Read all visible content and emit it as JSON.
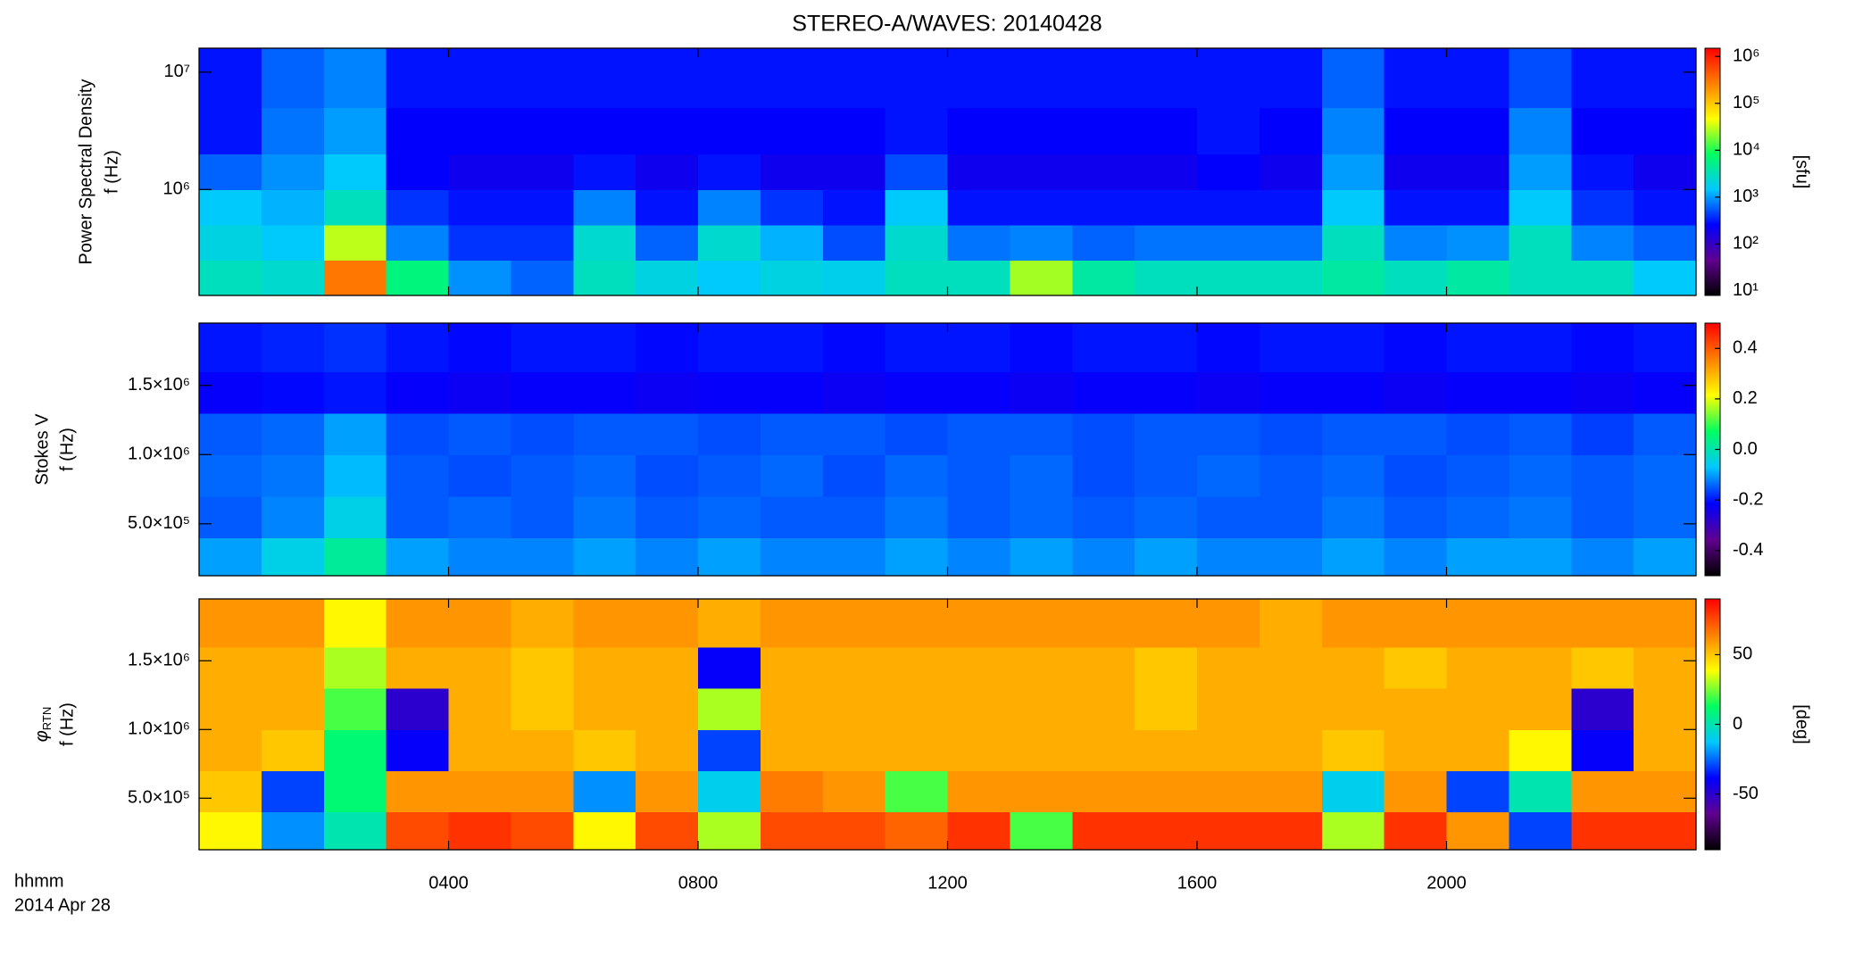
{
  "chart_data": [
    {
      "type": "heatmap",
      "title": "STEREO-A/WAVES: 20140428",
      "ylabel": [
        "Power Spectral Density",
        "f (Hz)"
      ],
      "ylog": true,
      "ylim": [
        125000,
        16000000
      ],
      "yticks": [
        {
          "value": 1000000,
          "label": "10⁶"
        },
        {
          "value": 10000000,
          "label": "10⁷"
        }
      ],
      "xlim": [
        0,
        24
      ],
      "xticks": [
        4,
        8,
        12,
        16,
        20
      ],
      "xbins": [
        0,
        1,
        2,
        3,
        4,
        5,
        6,
        7,
        8,
        9,
        10,
        11,
        12,
        13,
        14,
        15,
        16,
        17,
        18,
        19,
        20,
        21,
        22,
        23,
        24
      ],
      "ybins": [
        125000,
        250000,
        500000,
        1000000,
        2000000,
        5000000,
        16000000
      ],
      "z": [
        [
          3000,
          2500,
          300000,
          6000,
          900,
          600,
          3000,
          2000,
          1500,
          2000,
          1800,
          3000,
          3000,
          25000,
          4000,
          3000,
          3000,
          3000,
          4000,
          3000,
          4000,
          3000,
          3000,
          1500
        ],
        [
          2000,
          1500,
          30000,
          800,
          400,
          400,
          2500,
          600,
          2500,
          1200,
          500,
          2500,
          700,
          800,
          600,
          700,
          700,
          700,
          3000,
          800,
          900,
          3000,
          800,
          600
        ],
        [
          1500,
          1200,
          3000,
          400,
          300,
          300,
          800,
          300,
          800,
          400,
          300,
          1500,
          300,
          300,
          300,
          300,
          300,
          300,
          1500,
          300,
          300,
          1500,
          400,
          300
        ],
        [
          600,
          900,
          1500,
          250,
          200,
          200,
          300,
          200,
          300,
          200,
          200,
          500,
          200,
          200,
          200,
          200,
          250,
          200,
          1000,
          200,
          200,
          1000,
          300,
          200
        ],
        [
          300,
          700,
          1000,
          250,
          250,
          250,
          250,
          250,
          250,
          250,
          250,
          300,
          250,
          250,
          250,
          250,
          300,
          250,
          800,
          250,
          250,
          800,
          250,
          250
        ],
        [
          300,
          600,
          800,
          300,
          300,
          300,
          300,
          300,
          300,
          300,
          300,
          300,
          300,
          300,
          300,
          300,
          300,
          300,
          600,
          300,
          300,
          500,
          300,
          300
        ]
      ],
      "zlog": true,
      "zlim": [
        8,
        1500000
      ],
      "zticks": [
        {
          "value": 10,
          "label": "10¹"
        },
        {
          "value": 100,
          "label": "10²"
        },
        {
          "value": 1000,
          "label": "10³"
        },
        {
          "value": 10000,
          "label": "10⁴"
        },
        {
          "value": 100000,
          "label": "10⁵"
        },
        {
          "value": 1000000,
          "label": "10⁶"
        }
      ],
      "zlabel": "[sfu]",
      "colorscale": [
        "#000000",
        "#600090",
        "#0000ff",
        "#00c8ff",
        "#00ff60",
        "#ffff00",
        "#ff8000",
        "#ff0000"
      ]
    },
    {
      "type": "heatmap",
      "ylabel": [
        "Stokes V",
        "f (Hz)"
      ],
      "ylog": false,
      "ylim": [
        125000,
        1950000
      ],
      "yticks": [
        {
          "value": 500000,
          "label": "5.0×10⁵"
        },
        {
          "value": 1000000,
          "label": "1.0×10⁶"
        },
        {
          "value": 1500000,
          "label": "1.5×10⁶"
        }
      ],
      "xlim": [
        0,
        24
      ],
      "xticks": [
        4,
        8,
        12,
        16,
        20
      ],
      "xbins": [
        0,
        1,
        2,
        3,
        4,
        5,
        6,
        7,
        8,
        9,
        10,
        11,
        12,
        13,
        14,
        15,
        16,
        17,
        18,
        19,
        20,
        21,
        22,
        23,
        24
      ],
      "ybins": [
        125000,
        400000,
        700000,
        1000000,
        1300000,
        1600000,
        1950000
      ],
      "z": [
        [
          -0.1,
          -0.05,
          0.02,
          -0.1,
          -0.12,
          -0.12,
          -0.1,
          -0.12,
          -0.1,
          -0.12,
          -0.12,
          -0.1,
          -0.12,
          -0.1,
          -0.12,
          -0.1,
          -0.12,
          -0.12,
          -0.1,
          -0.12,
          -0.1,
          -0.1,
          -0.12,
          -0.1
        ],
        [
          -0.15,
          -0.12,
          -0.05,
          -0.15,
          -0.14,
          -0.15,
          -0.13,
          -0.15,
          -0.14,
          -0.15,
          -0.15,
          -0.13,
          -0.15,
          -0.14,
          -0.15,
          -0.14,
          -0.15,
          -0.15,
          -0.13,
          -0.15,
          -0.14,
          -0.13,
          -0.15,
          -0.14
        ],
        [
          -0.14,
          -0.13,
          -0.08,
          -0.15,
          -0.16,
          -0.15,
          -0.14,
          -0.16,
          -0.15,
          -0.14,
          -0.16,
          -0.14,
          -0.15,
          -0.14,
          -0.16,
          -0.15,
          -0.14,
          -0.15,
          -0.14,
          -0.16,
          -0.15,
          -0.14,
          -0.15,
          -0.14
        ],
        [
          -0.15,
          -0.14,
          -0.1,
          -0.16,
          -0.15,
          -0.16,
          -0.15,
          -0.15,
          -0.16,
          -0.15,
          -0.15,
          -0.16,
          -0.15,
          -0.15,
          -0.16,
          -0.15,
          -0.15,
          -0.16,
          -0.15,
          -0.15,
          -0.16,
          -0.15,
          -0.17,
          -0.15
        ],
        [
          -0.22,
          -0.21,
          -0.2,
          -0.22,
          -0.23,
          -0.22,
          -0.22,
          -0.23,
          -0.22,
          -0.22,
          -0.23,
          -0.22,
          -0.22,
          -0.23,
          -0.22,
          -0.22,
          -0.23,
          -0.22,
          -0.22,
          -0.23,
          -0.22,
          -0.22,
          -0.23,
          -0.22
        ],
        [
          -0.2,
          -0.19,
          -0.18,
          -0.2,
          -0.21,
          -0.2,
          -0.2,
          -0.21,
          -0.2,
          -0.2,
          -0.21,
          -0.2,
          -0.2,
          -0.21,
          -0.2,
          -0.2,
          -0.21,
          -0.2,
          -0.2,
          -0.21,
          -0.2,
          -0.2,
          -0.21,
          -0.2
        ]
      ],
      "zlog": false,
      "zlim": [
        -0.5,
        0.5
      ],
      "zticks": [
        -0.4,
        -0.2,
        {
          "value": 0,
          "label": "0.0"
        },
        0.2,
        0.4
      ],
      "colorscale": [
        "#000000",
        "#600090",
        "#0000ff",
        "#00c8ff",
        "#00ff60",
        "#ffff00",
        "#ff8000",
        "#ff0000"
      ]
    },
    {
      "type": "heatmap",
      "ylabel_symbol": "φ",
      "ylabel_subscript": "RTN",
      "ylabel_unit": "f (Hz)",
      "ylog": false,
      "ylim": [
        125000,
        1950000
      ],
      "yticks": [
        {
          "value": 500000,
          "label": "5.0×10⁵"
        },
        {
          "value": 1000000,
          "label": "1.0×10⁶"
        },
        {
          "value": 1500000,
          "label": "1.5×10⁶"
        }
      ],
      "xlim": [
        0,
        24
      ],
      "xticks": [
        {
          "value": 4,
          "label": "0400"
        },
        {
          "value": 8,
          "label": "0800"
        },
        {
          "value": 12,
          "label": "1200"
        },
        {
          "value": 16,
          "label": "1600"
        },
        {
          "value": 20,
          "label": "2000"
        }
      ],
      "xlabel": "hhmm",
      "date_label": "2014 Apr 28",
      "xbins": [
        0,
        1,
        2,
        3,
        4,
        5,
        6,
        7,
        8,
        9,
        10,
        11,
        12,
        13,
        14,
        15,
        16,
        17,
        18,
        19,
        20,
        21,
        22,
        23,
        24
      ],
      "ybins": [
        125000,
        400000,
        700000,
        1000000,
        1300000,
        1600000,
        1950000
      ],
      "z": [
        [
          40,
          -20,
          0,
          75,
          80,
          75,
          40,
          75,
          30,
          75,
          75,
          70,
          80,
          20,
          80,
          80,
          80,
          80,
          30,
          80,
          60,
          -30,
          80,
          80
        ],
        [
          50,
          -30,
          10,
          60,
          60,
          60,
          -20,
          60,
          -10,
          65,
          60,
          20,
          60,
          60,
          60,
          60,
          60,
          60,
          -10,
          60,
          -30,
          0,
          60,
          60
        ],
        [
          55,
          50,
          10,
          -40,
          55,
          55,
          50,
          55,
          -30,
          55,
          55,
          55,
          55,
          55,
          55,
          55,
          55,
          55,
          50,
          55,
          55,
          40,
          -40,
          55
        ],
        [
          55,
          55,
          20,
          -50,
          55,
          50,
          55,
          55,
          30,
          55,
          55,
          55,
          55,
          55,
          55,
          50,
          55,
          55,
          55,
          55,
          55,
          55,
          -50,
          55
        ],
        [
          55,
          55,
          30,
          55,
          55,
          50,
          55,
          55,
          -40,
          55,
          55,
          55,
          55,
          55,
          55,
          50,
          55,
          55,
          55,
          50,
          55,
          55,
          50,
          55
        ],
        [
          60,
          60,
          40,
          60,
          60,
          55,
          60,
          60,
          55,
          60,
          60,
          60,
          60,
          60,
          60,
          60,
          60,
          55,
          60,
          60,
          60,
          60,
          60,
          60
        ]
      ],
      "zlog": false,
      "zlim": [
        -90,
        90
      ],
      "zticks": [
        -50,
        0,
        50
      ],
      "zlabel": "[deg]",
      "colorscale": [
        "#000000",
        "#600090",
        "#0000ff",
        "#00c8ff",
        "#00ff60",
        "#ffff00",
        "#ff8000",
        "#ff0000"
      ]
    }
  ]
}
